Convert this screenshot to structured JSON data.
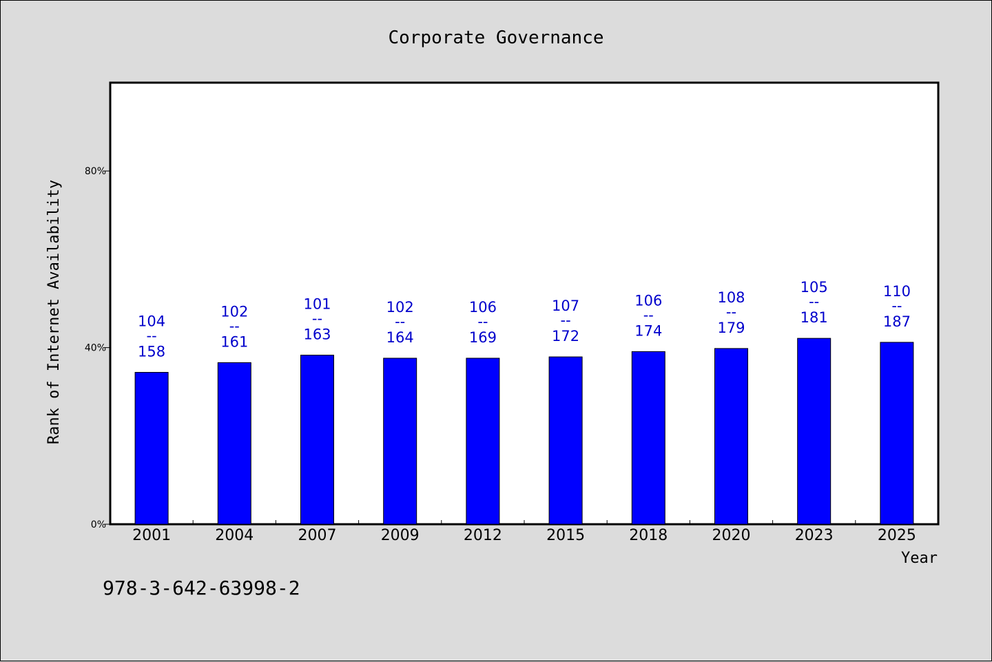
{
  "chart_data": {
    "type": "bar",
    "title": "Corporate Governance",
    "xlabel": "Year",
    "ylabel": "Rank of Internet Availability",
    "categories": [
      "2001",
      "2004",
      "2007",
      "2009",
      "2012",
      "2015",
      "2018",
      "2020",
      "2023",
      "2025"
    ],
    "values": [
      34.4,
      36.6,
      38.3,
      37.6,
      37.6,
      37.9,
      39.1,
      39.8,
      42.1,
      41.2
    ],
    "value_unit": "%",
    "label_top": [
      "104",
      "102",
      "101",
      "102",
      "106",
      "107",
      "106",
      "108",
      "105",
      "110"
    ],
    "label_bottom": [
      "158",
      "161",
      "163",
      "164",
      "169",
      "172",
      "174",
      "179",
      "181",
      "187"
    ],
    "label_separator": "--",
    "yticks": [
      "0%",
      "40%",
      "80%"
    ],
    "ytick_values": [
      0,
      40,
      80
    ],
    "ylim": [
      0,
      100
    ],
    "grid": false,
    "bar_color": "#0000ff",
    "label_color": "#0000cc"
  },
  "footnote": "978-3-642-63998-2"
}
